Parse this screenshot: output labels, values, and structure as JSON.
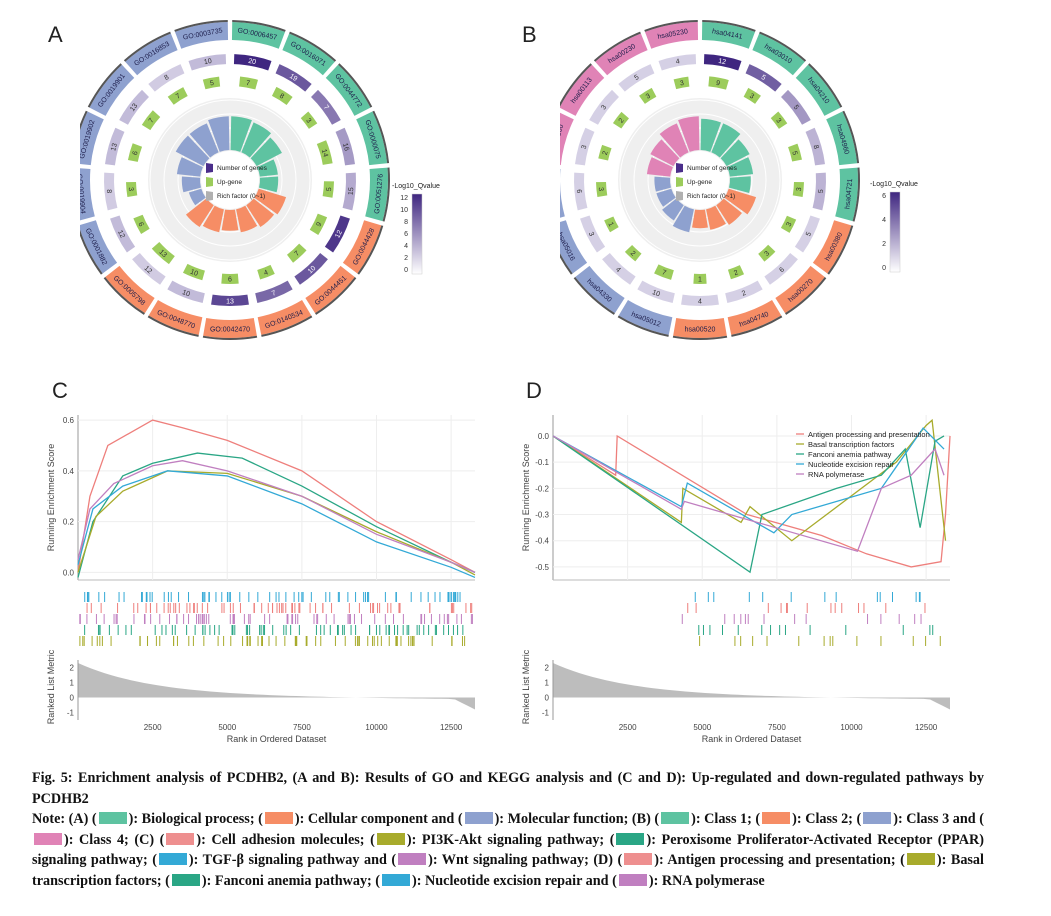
{
  "panels": {
    "a": "A",
    "b": "B",
    "c": "C",
    "d": "D"
  },
  "colors": {
    "bp": "#5ec3a1",
    "cc": "#f68d65",
    "mf": "#8ea1cf",
    "pink": "#e083b6",
    "green_bar": "#9ccc5b",
    "purple": "#4a2d8a",
    "grid": "#e6e6e6",
    "red": "#ee7f7c",
    "olive": "#a8ab2c",
    "teal": "#2aa685",
    "blue": "#33a9d6",
    "violet": "#c07fc0",
    "grey": "#b0b0b0"
  },
  "circ_a": {
    "gene_legend": "Number of genes",
    "up_legend": "Up-gene",
    "rich_legend": "Rich factor (0~1)",
    "cbar_title": "-Log10_Qvalue",
    "cbar_ticks": [
      "12",
      "10",
      "8",
      "6",
      "4",
      "2",
      "0"
    ],
    "sectors": [
      {
        "id": "GO:0006457",
        "cat": "bp",
        "count": "20",
        "up": "7",
        "rf": 0.65,
        "q": 12
      },
      {
        "id": "GO:0016071",
        "cat": "bp",
        "count": "19",
        "up": "8",
        "rf": 0.62,
        "q": 9
      },
      {
        "id": "GO:0044772",
        "cat": "bp",
        "count": "7",
        "up": "3",
        "rf": 0.55,
        "q": 7
      },
      {
        "id": "GO:0000075",
        "cat": "bp",
        "count": "16",
        "up": "14",
        "rf": 0.35,
        "q": 5
      },
      {
        "id": "GO:0051276",
        "cat": "bp",
        "count": "15",
        "up": "5",
        "rf": 0.35,
        "q": 4
      },
      {
        "id": "GO:0044428",
        "cat": "cc",
        "count": "12",
        "up": "9",
        "rf": 0.55,
        "q": 11
      },
      {
        "id": "GO:0044451",
        "cat": "cc",
        "count": "10",
        "up": "7",
        "rf": 0.5,
        "q": 9
      },
      {
        "id": "GO:0140534",
        "cat": "cc",
        "count": "7",
        "up": "4",
        "rf": 0.45,
        "q": 8
      },
      {
        "id": "GO:0042470",
        "cat": "cc",
        "count": "13",
        "up": "6",
        "rf": 0.4,
        "q": 10
      },
      {
        "id": "GO:0048770",
        "cat": "cc",
        "count": "10",
        "up": "10",
        "rf": 0.45,
        "q": 3
      },
      {
        "id": "GO:0005798",
        "cat": "cc",
        "count": "12",
        "up": "13",
        "rf": 0.5,
        "q": 2
      },
      {
        "id": "GO:0001882",
        "cat": "mf",
        "count": "12",
        "up": "6",
        "rf": 0.25,
        "q": 3
      },
      {
        "id": "GO:0019904",
        "cat": "mf",
        "count": "8",
        "up": "3",
        "rf": 0.35,
        "q": 2
      },
      {
        "id": "GO:0019902",
        "cat": "mf",
        "count": "13",
        "up": "6",
        "rf": 0.45,
        "q": 3
      },
      {
        "id": "GO:0019901",
        "cat": "mf",
        "count": "13",
        "up": "7",
        "rf": 0.6,
        "q": 3
      },
      {
        "id": "GO:0016853",
        "cat": "mf",
        "count": "8",
        "up": "7",
        "rf": 0.6,
        "q": 2
      },
      {
        "id": "GO:0003735",
        "cat": "mf",
        "count": "10",
        "up": "5",
        "rf": 0.65,
        "q": 3
      }
    ]
  },
  "circ_b": {
    "gene_legend": "Number of genes",
    "up_legend": "Up-gene",
    "rich_legend": "Rich factor (0~1)",
    "cbar_title": "-Log10_Qvalue",
    "cbar_ticks": [
      "6",
      "4",
      "2",
      "0"
    ],
    "sectors": [
      {
        "id": "hsa04141",
        "cat": "bp",
        "count": "12",
        "up": "9",
        "rf": 0.6,
        "q": 7
      },
      {
        "id": "hsa03010",
        "cat": "bp",
        "count": "5",
        "up": "3",
        "rf": 0.6,
        "q": 5
      },
      {
        "id": "hsa04210",
        "cat": "bp",
        "count": "5",
        "up": "3",
        "rf": 0.5,
        "q": 3
      },
      {
        "id": "hsa04960",
        "cat": "bp",
        "count": "8",
        "up": "5",
        "rf": 0.45,
        "q": 2
      },
      {
        "id": "hsa04721",
        "cat": "bp",
        "count": "5",
        "up": "3",
        "rf": 0.4,
        "q": 2
      },
      {
        "id": "hsa00380",
        "cat": "cc",
        "count": "5",
        "up": "3",
        "rf": 0.55,
        "q": 1
      },
      {
        "id": "hsa00270",
        "cat": "cc",
        "count": "6",
        "up": "3",
        "rf": 0.45,
        "q": 1
      },
      {
        "id": "hsa04740",
        "cat": "cc",
        "count": "2",
        "up": "2",
        "rf": 0.4,
        "q": 1
      },
      {
        "id": "hsa00520",
        "cat": "cc",
        "count": "4",
        "up": "1",
        "rf": 0.35,
        "q": 1
      },
      {
        "id": "hsa05012",
        "cat": "mf",
        "count": "10",
        "up": "7",
        "rf": 0.45,
        "q": 1
      },
      {
        "id": "hsa04330",
        "cat": "mf",
        "count": "4",
        "up": "2",
        "rf": 0.35,
        "q": 1
      },
      {
        "id": "hsa05016",
        "cat": "mf",
        "count": "3",
        "up": "1",
        "rf": 0.3,
        "q": 1
      },
      {
        "id": "hsa04722",
        "cat": "mf",
        "count": "6",
        "up": "3",
        "rf": 0.3,
        "q": 1
      },
      {
        "id": "hsa01200",
        "cat": "pink",
        "count": "3",
        "up": "2",
        "rf": 0.45,
        "q": 1
      },
      {
        "id": "hsa00113",
        "cat": "pink",
        "count": "3",
        "up": "2",
        "rf": 0.5,
        "q": 1
      },
      {
        "id": "hsa00230",
        "cat": "pink",
        "count": "5",
        "up": "3",
        "rf": 0.6,
        "q": 1
      },
      {
        "id": "hsa05230",
        "cat": "pink",
        "count": "4",
        "up": "3",
        "rf": 0.65,
        "q": 1
      }
    ]
  },
  "gsea_c": {
    "ylabel": "Running Enrichment Score",
    "yticks": [
      "0.6",
      "0.4",
      "0.2",
      "0.0"
    ],
    "rank_ylabel": "Ranked List Metric",
    "rank_yticks": [
      "2",
      "1",
      "0",
      "-1"
    ],
    "xticks": [
      "2500",
      "5000",
      "7500",
      "10000",
      "12500"
    ],
    "xlabel": "Rank in Ordered Dataset",
    "curves": [
      {
        "color": "red",
        "pts": [
          [
            0,
            0
          ],
          [
            400,
            0.3
          ],
          [
            1000,
            0.5
          ],
          [
            2500,
            0.6
          ],
          [
            3500,
            0.57
          ],
          [
            5000,
            0.52
          ],
          [
            7500,
            0.4
          ],
          [
            10000,
            0.2
          ],
          [
            12500,
            0.05
          ],
          [
            13300,
            0
          ]
        ]
      },
      {
        "color": "teal",
        "pts": [
          [
            0,
            -0.02
          ],
          [
            500,
            0.2
          ],
          [
            1500,
            0.38
          ],
          [
            2500,
            0.43
          ],
          [
            4000,
            0.47
          ],
          [
            5500,
            0.45
          ],
          [
            7500,
            0.34
          ],
          [
            10000,
            0.18
          ],
          [
            12500,
            0.04
          ],
          [
            13300,
            0
          ]
        ]
      },
      {
        "color": "olive",
        "pts": [
          [
            0,
            0
          ],
          [
            600,
            0.22
          ],
          [
            1500,
            0.32
          ],
          [
            3000,
            0.4
          ],
          [
            5000,
            0.39
          ],
          [
            7500,
            0.3
          ],
          [
            10000,
            0.16
          ],
          [
            12500,
            0.04
          ],
          [
            13300,
            -0.01
          ]
        ]
      },
      {
        "color": "violet",
        "pts": [
          [
            0,
            0.05
          ],
          [
            400,
            0.25
          ],
          [
            1200,
            0.35
          ],
          [
            2500,
            0.42
          ],
          [
            3500,
            0.44
          ],
          [
            5000,
            0.4
          ],
          [
            7500,
            0.3
          ],
          [
            10000,
            0.15
          ],
          [
            12500,
            0.04
          ],
          [
            13300,
            0
          ]
        ]
      },
      {
        "color": "blue",
        "pts": [
          [
            0,
            0.03
          ],
          [
            500,
            0.25
          ],
          [
            1500,
            0.34
          ],
          [
            3000,
            0.4
          ],
          [
            5000,
            0.38
          ],
          [
            7500,
            0.27
          ],
          [
            10000,
            0.12
          ],
          [
            12500,
            0.02
          ],
          [
            13300,
            -0.02
          ]
        ]
      }
    ]
  },
  "gsea_d": {
    "ylabel": "Running Enrichment Score",
    "yticks": [
      "0.0",
      "-0.1",
      "-0.2",
      "-0.3",
      "-0.4",
      "-0.5"
    ],
    "rank_ylabel": "Ranked List Metric",
    "rank_yticks": [
      "2",
      "1",
      "0",
      "-1"
    ],
    "xticks": [
      "2500",
      "5000",
      "7500",
      "10000",
      "12500"
    ],
    "xlabel": "Rank in Ordered Dataset",
    "legend": [
      "Antigen processing and presentation",
      "Basal transcription factors",
      "Fanconi anemia pathway",
      "Nucleotide excision repair",
      "RNA polymerase"
    ],
    "curves": [
      {
        "color": "red",
        "pts": [
          [
            0,
            0
          ],
          [
            2100,
            -0.15
          ],
          [
            2150,
            0
          ],
          [
            6500,
            -0.3
          ],
          [
            9000,
            -0.38
          ],
          [
            10500,
            -0.45
          ],
          [
            12000,
            -0.5
          ],
          [
            13000,
            -0.48
          ],
          [
            13150,
            -0.3
          ],
          [
            13300,
            0
          ]
        ]
      },
      {
        "color": "olive",
        "pts": [
          [
            0,
            0
          ],
          [
            4300,
            -0.33
          ],
          [
            4350,
            -0.2
          ],
          [
            6300,
            -0.33
          ],
          [
            6600,
            -0.27
          ],
          [
            8000,
            -0.4
          ],
          [
            11500,
            -0.1
          ],
          [
            12500,
            0.04
          ],
          [
            12700,
            0.06
          ],
          [
            13150,
            -0.4
          ]
        ]
      },
      {
        "color": "teal",
        "pts": [
          [
            0,
            0
          ],
          [
            6600,
            -0.52
          ],
          [
            7000,
            -0.3
          ],
          [
            9500,
            -0.2
          ],
          [
            11000,
            -0.15
          ],
          [
            11800,
            -0.05
          ],
          [
            12300,
            -0.35
          ],
          [
            12800,
            -0.02
          ],
          [
            13100,
            0
          ]
        ]
      },
      {
        "color": "blue",
        "pts": [
          [
            0,
            0
          ],
          [
            4300,
            -0.27
          ],
          [
            4500,
            -0.18
          ],
          [
            7400,
            -0.37
          ],
          [
            8000,
            -0.3
          ],
          [
            11000,
            -0.2
          ],
          [
            12400,
            0.03
          ],
          [
            13100,
            -0.05
          ]
        ]
      },
      {
        "color": "violet",
        "pts": [
          [
            0,
            0
          ],
          [
            4300,
            -0.28
          ],
          [
            4400,
            -0.25
          ],
          [
            10200,
            -0.44
          ],
          [
            11000,
            -0.2
          ],
          [
            12000,
            -0.15
          ],
          [
            12800,
            -0.05
          ],
          [
            13100,
            -0.15
          ]
        ]
      }
    ]
  },
  "caption": {
    "title": "Fig. 5: Enrichment analysis of PCDHB2, (A and B): Results of GO and KEGG analysis and (C and D): Up-regulated and down-regulated pathways by PCDHB2",
    "note_lead": "Note: (A) (",
    "a1": "): Biological process; (",
    "a2": "): Cellular component and (",
    "a3": "): Molecular function; (B) (",
    "b1": "): Class 1; (",
    "b2": "): Class 2; (",
    "b3": "): Class 3 and (",
    "b4": "): Class 4; (C) (",
    "c1": "): Cell adhesion molecules; (",
    "c2": "): PI3K-Akt signaling pathway; (",
    "c3": "): Peroxisome Proliferator-Activated Receptor (PPAR) signaling pathway; (",
    "c4": "): TGF-β signaling pathway and (",
    "c5": "): Wnt signaling pathway; (D) (",
    "d1": "): Antigen processing and presentation; (",
    "d2": "): Basal transcription factors; (",
    "d3": "): Fanconi anemia pathway; (",
    "d4": "): Nucleotide excision repair and (",
    "d5": "): RNA polymerase"
  }
}
